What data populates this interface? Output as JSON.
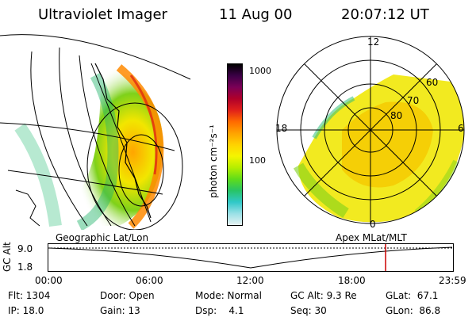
{
  "header": {
    "title": "Ultraviolet Imager",
    "date": "11 Aug 00",
    "time": "20:07:12 UT"
  },
  "colorbar": {
    "label": "photon cm⁻²s⁻¹",
    "ticks": [
      "1000",
      "100"
    ],
    "colors": [
      "#000000",
      "#3b0046",
      "#7a0057",
      "#b0002a",
      "#e0201a",
      "#ff6a00",
      "#ffa200",
      "#ffd200",
      "#f5f500",
      "#b5ee00",
      "#5fdc1a",
      "#28c466",
      "#30c8c8",
      "#9ae0e6",
      "#e6f2f2"
    ]
  },
  "geo_panel": {
    "label": "Geographic Lat/Lon"
  },
  "apex_panel": {
    "label": "Apex MLat/MLT",
    "mlt_labels": [
      "12",
      "18",
      "6",
      "0"
    ],
    "lat_labels": [
      "60",
      "70",
      "80"
    ]
  },
  "timeline": {
    "axis_label": "GC Alt",
    "y_ticks": [
      "9.0",
      "1.8"
    ],
    "x_ticks": [
      "00:00",
      "06:00",
      "12:00",
      "18:00",
      "23:59"
    ],
    "marker_color": "#cc0000"
  },
  "info": {
    "flt": "Flt: 1304",
    "ip": "IP: 18.0",
    "door": "Door: Open",
    "gain": "Gain: 13",
    "mode": "Mode: Normal",
    "dsp": "Dsp:    4.1",
    "gc_alt": "GC Alt: 9.3 Re",
    "seq": "Seq: 30",
    "glat": "GLat:  67.1",
    "glon": "GLon:  86.8"
  }
}
